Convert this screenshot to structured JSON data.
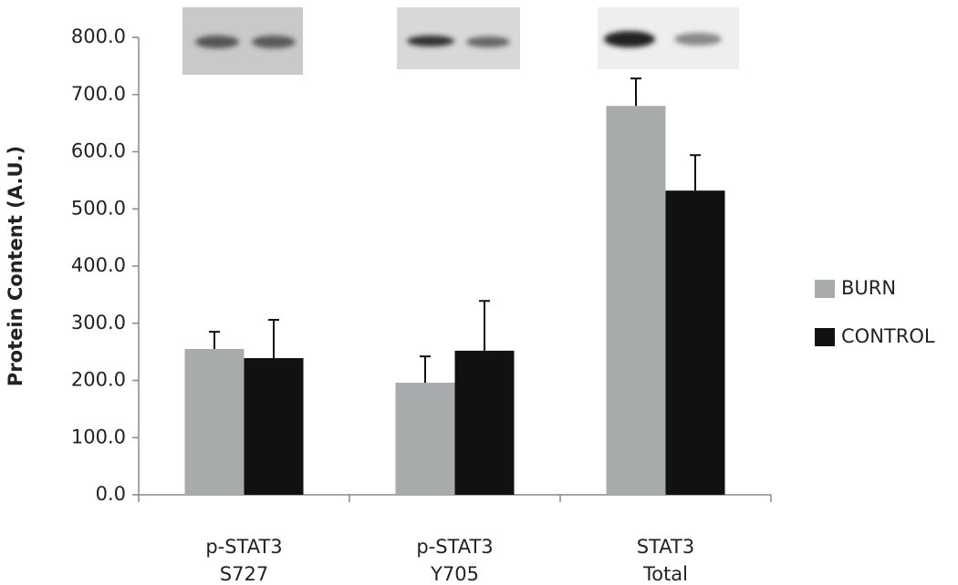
{
  "chart_data": {
    "type": "bar",
    "ylabel": "Protein Content (A.U.)",
    "categories": [
      [
        "p-STAT3",
        "S727"
      ],
      [
        "p-STAT3",
        "Y705"
      ],
      [
        "STAT3",
        "Total"
      ]
    ],
    "series": [
      {
        "name": "BURN",
        "color": "#a7abab",
        "values": [
          255,
          196,
          680
        ],
        "errors": [
          30,
          46,
          48
        ]
      },
      {
        "name": "CONTROL",
        "color": "#111111",
        "values": [
          239,
          252,
          532
        ],
        "errors": [
          67,
          87,
          62
        ]
      }
    ],
    "ylim": [
      0,
      800
    ],
    "yticks": [
      {
        "value": 0,
        "label": "0.0"
      },
      {
        "value": 100,
        "label": "100.0"
      },
      {
        "value": 200,
        "label": "200.0"
      },
      {
        "value": 300,
        "label": "300.0"
      },
      {
        "value": 400,
        "label": "400.0"
      },
      {
        "value": 500,
        "label": "500.0"
      },
      {
        "value": 600,
        "label": "600.0"
      },
      {
        "value": 700,
        "label": "700.0"
      },
      {
        "value": 800,
        "label": "800.0"
      }
    ],
    "legend": "right"
  }
}
